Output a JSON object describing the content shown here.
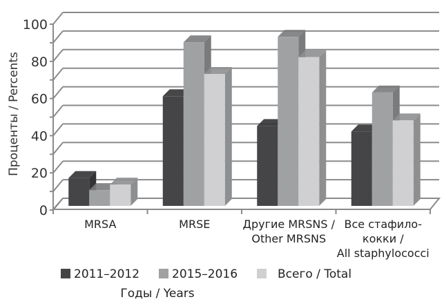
{
  "chart_data": {
    "type": "bar",
    "style": "3d-clustered-column",
    "title": "",
    "ylabel": "Проценты / Percents",
    "xlabel": "Годы / Years",
    "ylim": [
      0,
      100
    ],
    "y_ticks": [
      0,
      20,
      40,
      60,
      80,
      100
    ],
    "y_minor_step": 10,
    "grid": true,
    "legend_position": "bottom",
    "categories": [
      [
        "MRSA"
      ],
      [
        "MRSE"
      ],
      [
        "Другие MRSNS /",
        "Other MRSNS"
      ],
      [
        "Все стафило-",
        "кокки /",
        "All staphylococci"
      ]
    ],
    "series": [
      {
        "name": "2011–2012",
        "color": "#454547",
        "side_color": "#333335",
        "values": [
          15,
          59,
          43,
          40
        ]
      },
      {
        "name": "2015–2016",
        "color": "#a0a1a3",
        "side_color": "#7a7b7d",
        "values": [
          8.5,
          88,
          91,
          61
        ]
      },
      {
        "name": "Всего / Total",
        "color": "#d0d0d2",
        "side_color": "#8e8f91",
        "values": [
          11.5,
          71,
          80,
          46
        ]
      }
    ]
  },
  "colors": {
    "grid": "#8a8a8a",
    "axis": "#8a8a8a"
  }
}
